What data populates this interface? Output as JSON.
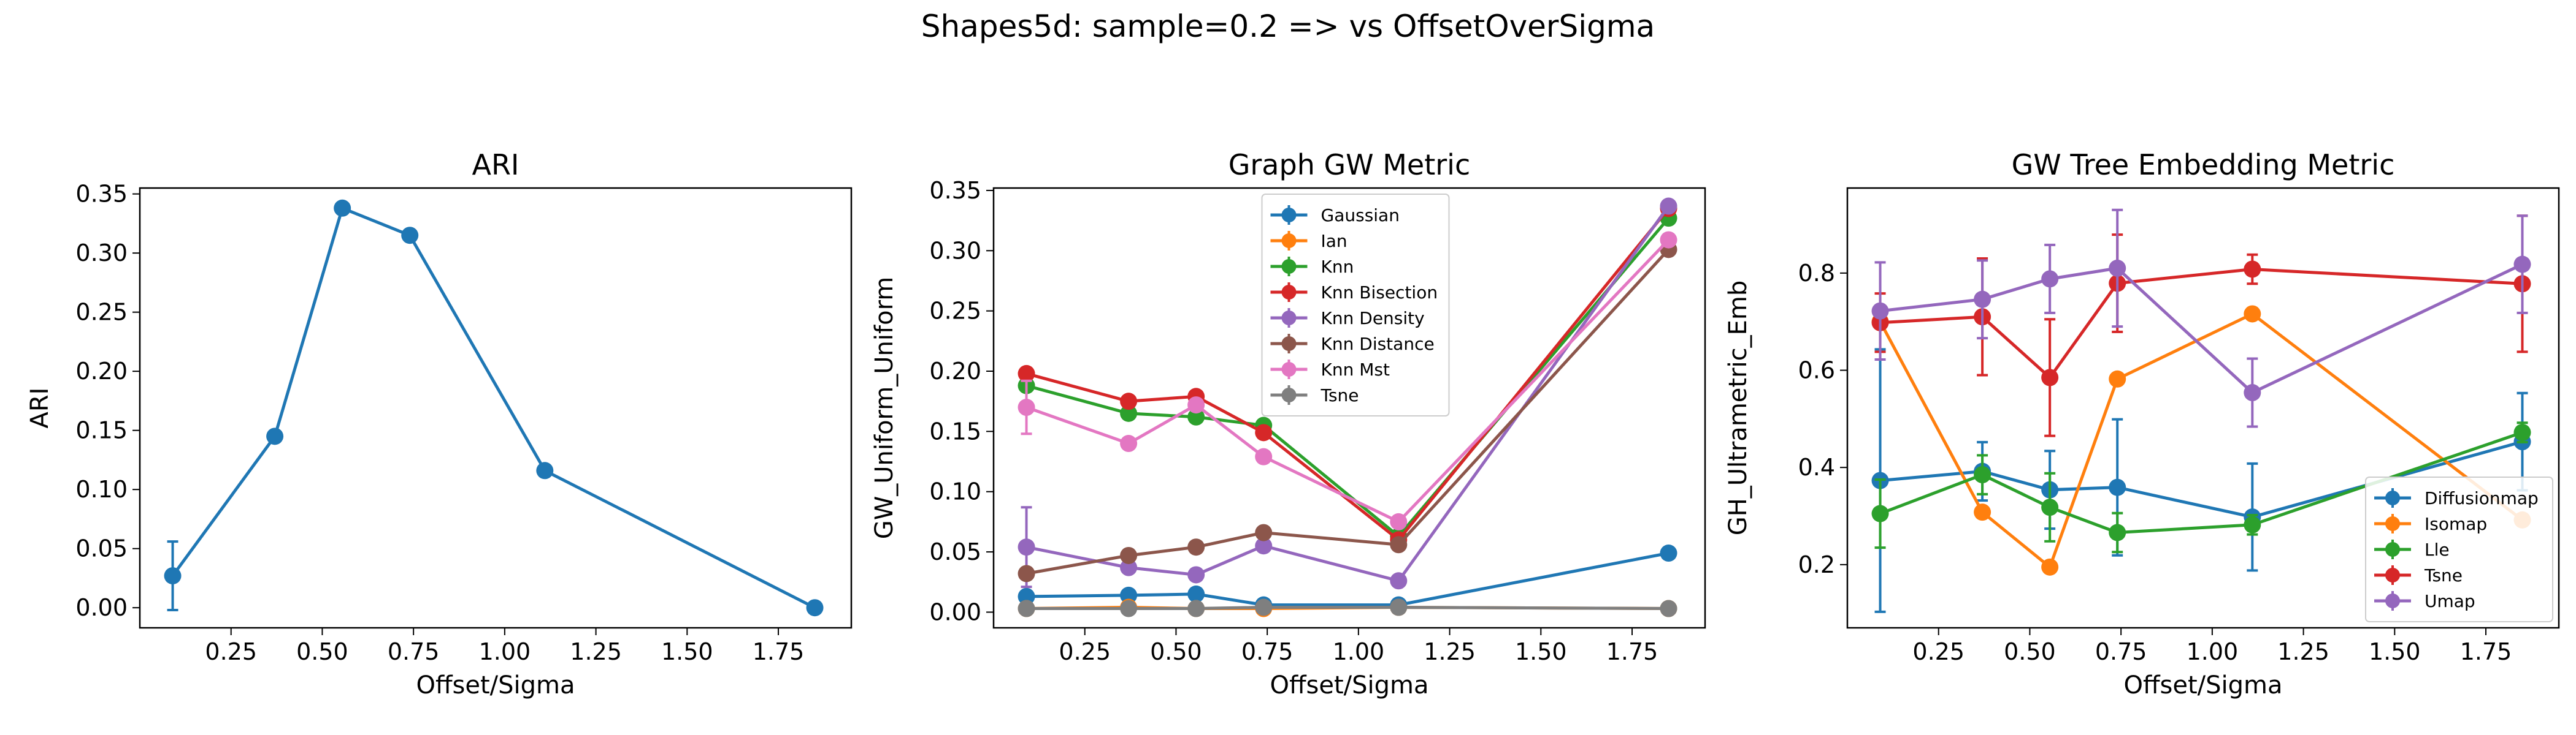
{
  "figure": {
    "suptitle": "Shapes5d: sample=0.2 => vs OffsetOverSigma"
  },
  "chart_data": [
    {
      "type": "line",
      "title": "ARI",
      "xlabel": "Offset/Sigma",
      "ylabel": "ARI",
      "xlim": [
        0.0,
        1.95
      ],
      "ylim": [
        -0.017,
        0.355
      ],
      "xticks": [
        0.25,
        0.5,
        0.75,
        1.0,
        1.25,
        1.5,
        1.75
      ],
      "xtick_labels": [
        "0.25",
        "0.50",
        "0.75",
        "1.00",
        "1.25",
        "1.50",
        "1.75"
      ],
      "yticks": [
        0.0,
        0.05,
        0.1,
        0.15,
        0.2,
        0.25,
        0.3,
        0.35
      ],
      "ytick_labels": [
        "0.00",
        "0.05",
        "0.10",
        "0.15",
        "0.20",
        "0.25",
        "0.30",
        "0.35"
      ],
      "grid": false,
      "legend": null,
      "series": [
        {
          "color": "#1f77b4",
          "x": [
            0.09,
            0.37,
            0.555,
            0.74,
            1.11,
            1.85
          ],
          "y": [
            0.027,
            0.145,
            0.338,
            0.315,
            0.116,
            0.0
          ],
          "err": [
            0.029,
            0,
            0,
            0,
            0,
            0
          ]
        }
      ]
    },
    {
      "type": "line",
      "title": "Graph GW Metric",
      "xlabel": "Offset/Sigma",
      "ylabel": "GW_Uniform_Uniform",
      "xlim": [
        0.0,
        1.95
      ],
      "ylim": [
        -0.013,
        0.352
      ],
      "xticks": [
        0.25,
        0.5,
        0.75,
        1.0,
        1.25,
        1.5,
        1.75
      ],
      "xtick_labels": [
        "0.25",
        "0.50",
        "0.75",
        "1.00",
        "1.25",
        "1.50",
        "1.75"
      ],
      "yticks": [
        0.0,
        0.05,
        0.1,
        0.15,
        0.2,
        0.25,
        0.3,
        0.35
      ],
      "ytick_labels": [
        "0.00",
        "0.05",
        "0.10",
        "0.15",
        "0.20",
        "0.25",
        "0.30",
        "0.35"
      ],
      "grid": false,
      "legend": "top-center",
      "series": [
        {
          "name": "Gaussian",
          "color": "#1f77b4",
          "x": [
            0.09,
            0.37,
            0.555,
            0.74,
            1.11,
            1.85
          ],
          "y": [
            0.013,
            0.014,
            0.015,
            0.006,
            0.006,
            0.049
          ],
          "err": [
            0.003,
            0.003,
            0.003,
            0.002,
            0.002,
            0.002
          ]
        },
        {
          "name": "Ian",
          "color": "#ff7f0e",
          "x": [
            0.09,
            0.37,
            0.555,
            0.74,
            1.11,
            1.85
          ],
          "y": [
            0.003,
            0.004,
            0.003,
            0.003,
            0.004,
            0.003
          ],
          "err": [
            0,
            0,
            0,
            0,
            0,
            0
          ]
        },
        {
          "name": "Knn",
          "color": "#2ca02c",
          "x": [
            0.09,
            0.37,
            0.555,
            0.74,
            1.11,
            1.85
          ],
          "y": [
            0.188,
            0.165,
            0.162,
            0.155,
            0.063,
            0.327
          ],
          "err": [
            0,
            0,
            0,
            0,
            0,
            0
          ]
        },
        {
          "name": "Knn Bisection",
          "color": "#d62728",
          "x": [
            0.09,
            0.37,
            0.555,
            0.74,
            1.11,
            1.85
          ],
          "y": [
            0.198,
            0.175,
            0.179,
            0.149,
            0.06,
            0.335
          ],
          "err": [
            0,
            0,
            0,
            0,
            0,
            0
          ]
        },
        {
          "name": "Knn Density",
          "color": "#9467bd",
          "x": [
            0.09,
            0.37,
            0.555,
            0.74,
            1.11,
            1.85
          ],
          "y": [
            0.054,
            0.037,
            0.031,
            0.055,
            0.026,
            0.337
          ],
          "err": [
            0.033,
            0,
            0,
            0,
            0,
            0
          ]
        },
        {
          "name": "Knn Distance",
          "color": "#8c564b",
          "x": [
            0.09,
            0.37,
            0.555,
            0.74,
            1.11,
            1.85
          ],
          "y": [
            0.032,
            0.047,
            0.054,
            0.066,
            0.056,
            0.301
          ],
          "err": [
            0,
            0,
            0,
            0,
            0,
            0
          ]
        },
        {
          "name": "Knn Mst",
          "color": "#e377c2",
          "x": [
            0.09,
            0.37,
            0.555,
            0.74,
            1.11,
            1.85
          ],
          "y": [
            0.17,
            0.14,
            0.172,
            0.129,
            0.075,
            0.309
          ],
          "err": [
            0.022,
            0,
            0,
            0,
            0,
            0
          ]
        },
        {
          "name": "Tsne",
          "color": "#7f7f7f",
          "x": [
            0.09,
            0.37,
            0.555,
            0.74,
            1.11,
            1.85
          ],
          "y": [
            0.003,
            0.003,
            0.003,
            0.004,
            0.004,
            0.003
          ],
          "err": [
            0,
            0,
            0,
            0,
            0,
            0
          ]
        }
      ]
    },
    {
      "type": "line",
      "title": "GW Tree Embedding Metric",
      "xlabel": "Offset/Sigma",
      "ylabel": "GH_Ultrametric_Emb",
      "xlim": [
        0.0,
        1.95
      ],
      "ylim": [
        0.07,
        0.975
      ],
      "xticks": [
        0.25,
        0.5,
        0.75,
        1.0,
        1.25,
        1.5,
        1.75
      ],
      "xtick_labels": [
        "0.25",
        "0.50",
        "0.75",
        "1.00",
        "1.25",
        "1.50",
        "1.75"
      ],
      "yticks": [
        0.2,
        0.4,
        0.6,
        0.8
      ],
      "ytick_labels": [
        "0.2",
        "0.4",
        "0.6",
        "0.8"
      ],
      "grid": false,
      "legend": "bottom-right",
      "series": [
        {
          "name": "Diffusionmap",
          "color": "#1f77b4",
          "x": [
            0.09,
            0.37,
            0.555,
            0.74,
            1.11,
            1.85
          ],
          "y": [
            0.373,
            0.392,
            0.354,
            0.359,
            0.298,
            0.453
          ],
          "err": [
            0.27,
            0.06,
            0.08,
            0.14,
            0.11,
            0.1
          ]
        },
        {
          "name": "Isomap",
          "color": "#ff7f0e",
          "x": [
            0.09,
            0.37,
            0.555,
            0.74,
            1.11,
            1.85
          ],
          "y": [
            0.7,
            0.308,
            0.195,
            0.582,
            0.716,
            0.292
          ],
          "err": [
            0,
            0,
            0,
            0,
            0,
            0
          ]
        },
        {
          "name": "Lle",
          "color": "#2ca02c",
          "x": [
            0.09,
            0.37,
            0.555,
            0.74,
            1.11,
            1.85
          ],
          "y": [
            0.305,
            0.385,
            0.318,
            0.266,
            0.282,
            0.472
          ],
          "err": [
            0.07,
            0.04,
            0.07,
            0.04,
            0.02,
            0.02
          ]
        },
        {
          "name": "Tsne",
          "color": "#d62728",
          "x": [
            0.09,
            0.37,
            0.555,
            0.74,
            1.11,
            1.85
          ],
          "y": [
            0.698,
            0.71,
            0.585,
            0.779,
            0.808,
            0.778
          ],
          "err": [
            0.06,
            0.12,
            0.12,
            0.1,
            0.03,
            0.14
          ]
        },
        {
          "name": "Umap",
          "color": "#9467bd",
          "x": [
            0.09,
            0.37,
            0.555,
            0.74,
            1.11,
            1.85
          ],
          "y": [
            0.722,
            0.746,
            0.788,
            0.81,
            0.554,
            0.818
          ],
          "err": [
            0.1,
            0.08,
            0.07,
            0.12,
            0.07,
            0.1
          ]
        }
      ]
    }
  ]
}
